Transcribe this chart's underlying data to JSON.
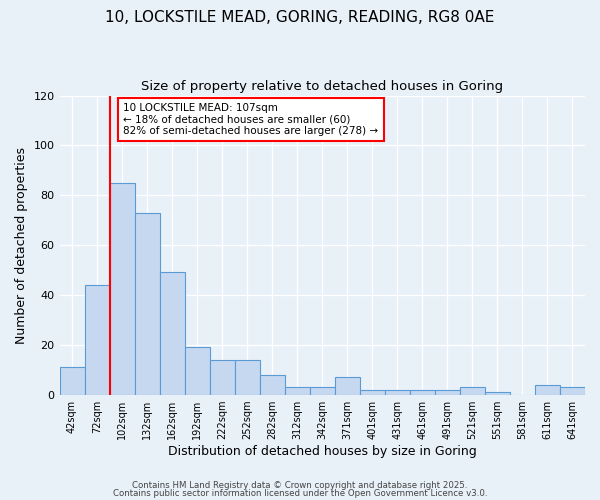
{
  "title1": "10, LOCKSTILE MEAD, GORING, READING, RG8 0AE",
  "title2": "Size of property relative to detached houses in Goring",
  "xlabel": "Distribution of detached houses by size in Goring",
  "ylabel": "Number of detached properties",
  "categories": [
    "42sqm",
    "72sqm",
    "102sqm",
    "132sqm",
    "162sqm",
    "192sqm",
    "222sqm",
    "252sqm",
    "282sqm",
    "312sqm",
    "342sqm",
    "371sqm",
    "401sqm",
    "431sqm",
    "461sqm",
    "491sqm",
    "521sqm",
    "551sqm",
    "581sqm",
    "611sqm",
    "641sqm"
  ],
  "values": [
    11,
    44,
    85,
    73,
    49,
    19,
    14,
    14,
    8,
    3,
    3,
    7,
    2,
    2,
    2,
    2,
    3,
    1,
    0,
    4,
    3
  ],
  "bar_color": "#c5d8f0",
  "bar_edge_color": "#5b9bd5",
  "red_line_index": 2,
  "annotation_text": "10 LOCKSTILE MEAD: 107sqm\n← 18% of detached houses are smaller (60)\n82% of semi-detached houses are larger (278) →",
  "annotation_box_color": "white",
  "annotation_box_edge": "red",
  "ylim": [
    0,
    120
  ],
  "yticks": [
    0,
    20,
    40,
    60,
    80,
    100,
    120
  ],
  "background_color": "#e8f0f8",
  "grid_color": "white",
  "footer1": "Contains HM Land Registry data © Crown copyright and database right 2025.",
  "footer2": "Contains public sector information licensed under the Open Government Licence v3.0."
}
